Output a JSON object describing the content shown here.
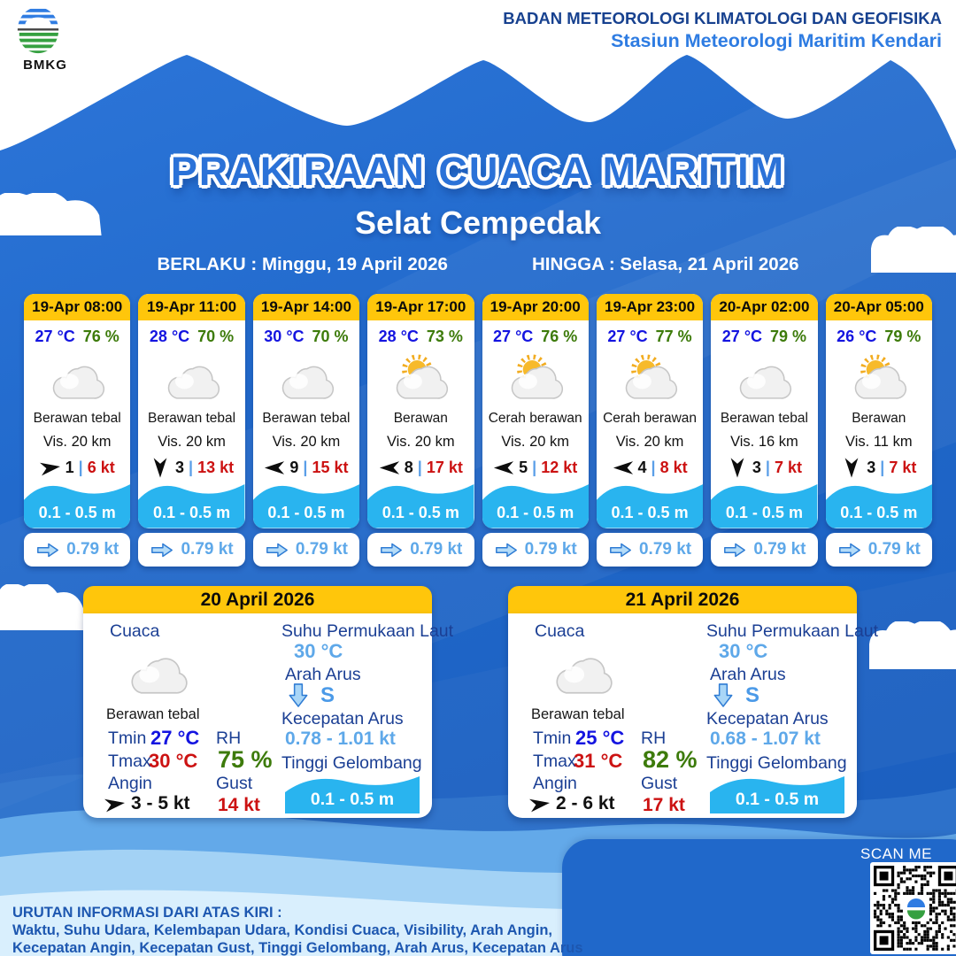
{
  "header": {
    "logo_label": "BMKG",
    "org_line1": "BADAN METEOROLOGI KLIMATOLOGI DAN GEOFISIKA",
    "org_line2": "Stasiun Meteorologi Maritim Kendari"
  },
  "title": {
    "main": "PRAKIRAAN CUACA MARITIM",
    "subtitle": "Selat Cempedak",
    "berlaku_label": "BERLAKU :",
    "berlaku_value": "Minggu, 19 April 2026",
    "hingga_label": "HINGGA :",
    "hingga_value": "Selasa, 21 April 2026"
  },
  "labels": {
    "vis": "Vis.",
    "separator": "|"
  },
  "forecards": [
    {
      "time": "19-Apr 08:00",
      "temp": "27 °C",
      "rh": "76 %",
      "icon": "cloud",
      "condition": "Berawan tebal",
      "vis": "20 km",
      "wind_dir": "E",
      "wind": "1",
      "gust": "6 kt",
      "wave": "0.1 - 0.5 m",
      "current": "0.79 kt"
    },
    {
      "time": "19-Apr 11:00",
      "temp": "28 °C",
      "rh": "70 %",
      "icon": "cloud",
      "condition": "Berawan tebal",
      "vis": "20 km",
      "wind_dir": "S",
      "wind": "3",
      "gust": "13 kt",
      "wave": "0.1 - 0.5 m",
      "current": "0.79 kt"
    },
    {
      "time": "19-Apr 14:00",
      "temp": "30 °C",
      "rh": "70 %",
      "icon": "cloud",
      "condition": "Berawan tebal",
      "vis": "20 km",
      "wind_dir": "W",
      "wind": "9",
      "gust": "15 kt",
      "wave": "0.1 - 0.5 m",
      "current": "0.79 kt"
    },
    {
      "time": "19-Apr 17:00",
      "temp": "28 °C",
      "rh": "73 %",
      "icon": "suncloud",
      "condition": "Berawan",
      "vis": "20 km",
      "wind_dir": "W",
      "wind": "8",
      "gust": "17 kt",
      "wave": "0.1 - 0.5 m",
      "current": "0.79 kt"
    },
    {
      "time": "19-Apr 20:00",
      "temp": "27 °C",
      "rh": "76 %",
      "icon": "suncloud",
      "condition": "Cerah berawan",
      "vis": "20 km",
      "wind_dir": "W",
      "wind": "5",
      "gust": "12 kt",
      "wave": "0.1 - 0.5 m",
      "current": "0.79 kt"
    },
    {
      "time": "19-Apr 23:00",
      "temp": "27 °C",
      "rh": "77 %",
      "icon": "suncloud",
      "condition": "Cerah berawan",
      "vis": "20 km",
      "wind_dir": "W",
      "wind": "4",
      "gust": "8 kt",
      "wave": "0.1 - 0.5 m",
      "current": "0.79 kt"
    },
    {
      "time": "20-Apr 02:00",
      "temp": "27 °C",
      "rh": "79 %",
      "icon": "cloud",
      "condition": "Berawan tebal",
      "vis": "16 km",
      "wind_dir": "S",
      "wind": "3",
      "gust": "7 kt",
      "wave": "0.1 - 0.5 m",
      "current": "0.79 kt"
    },
    {
      "time": "20-Apr 05:00",
      "temp": "26 °C",
      "rh": "79 %",
      "icon": "suncloud",
      "condition": "Berawan",
      "vis": "11 km",
      "wind_dir": "S",
      "wind": "3",
      "gust": "7 kt",
      "wave": "0.1 - 0.5 m",
      "current": "0.79 kt"
    }
  ],
  "daily": [
    {
      "date": "20 April 2026",
      "cuaca_label": "Cuaca",
      "condition": "Berawan tebal",
      "tmin_label": "Tmin",
      "tmin": "27 °C",
      "tmax_label": "Tmax",
      "tmax": "30 °C",
      "angin_label": "Angin",
      "angin": "3 - 5 kt",
      "wind_dir": "E",
      "rh_label": "RH",
      "rh": "75 %",
      "gust_label": "Gust",
      "gust": "14 kt",
      "sst_label": "Suhu Permukaan Laut",
      "sst": "30 °C",
      "arah_arus_label": "Arah Arus",
      "arah_arus": "S",
      "kecepatan_arus_label": "Kecepatan Arus",
      "kecepatan_arus": "0.78 - 1.01 kt",
      "tinggi_label": "Tinggi Gelombang",
      "wave": "0.1 - 0.5 m"
    },
    {
      "date": "21 April 2026",
      "cuaca_label": "Cuaca",
      "condition": "Berawan tebal",
      "tmin_label": "Tmin",
      "tmin": "25 °C",
      "tmax_label": "Tmax",
      "tmax": "31 °C",
      "angin_label": "Angin",
      "angin": "2 - 6 kt",
      "wind_dir": "E",
      "rh_label": "RH",
      "rh": "82 %",
      "gust_label": "Gust",
      "gust": "17 kt",
      "sst_label": "Suhu Permukaan Laut",
      "sst": "30 °C",
      "arah_arus_label": "Arah Arus",
      "arah_arus": "S",
      "kecepatan_arus_label": "Kecepatan Arus",
      "kecepatan_arus": "0.68 - 1.07 kt",
      "tinggi_label": "Tinggi Gelombang",
      "wave": "0.1 - 0.5 m"
    }
  ],
  "footer": {
    "line1": "URUTAN INFORMASI DARI ATAS KIRI :",
    "line2": "Waktu, Suhu Udara, Kelembapan Udara, Kondisi Cuaca, Visibility, Arah Angin,",
    "line3": "Kecepatan Angin, Kecepatan Gust, Tinggi Gelombang, Arah Arus, Kecepatan Arus",
    "scan_label": "SCAN ME"
  },
  "colors": {
    "primary_blue": "#2068ca",
    "primary_blue_light": "#2d76d9",
    "primary_blue_dark": "#1a5dbd",
    "accent_yellow": "#ffc60b",
    "wave_cyan": "#29b4ef",
    "temp_blue": "#1414e0",
    "humidity_green": "#3d7b0b",
    "speed_red": "#cc1212",
    "current_lightblue": "#5ea8e9",
    "label_navy": "#1b3f94",
    "org_navy": "#17418f",
    "org_blue": "#2e7ce2",
    "footer_blue": "#1d57b0"
  }
}
